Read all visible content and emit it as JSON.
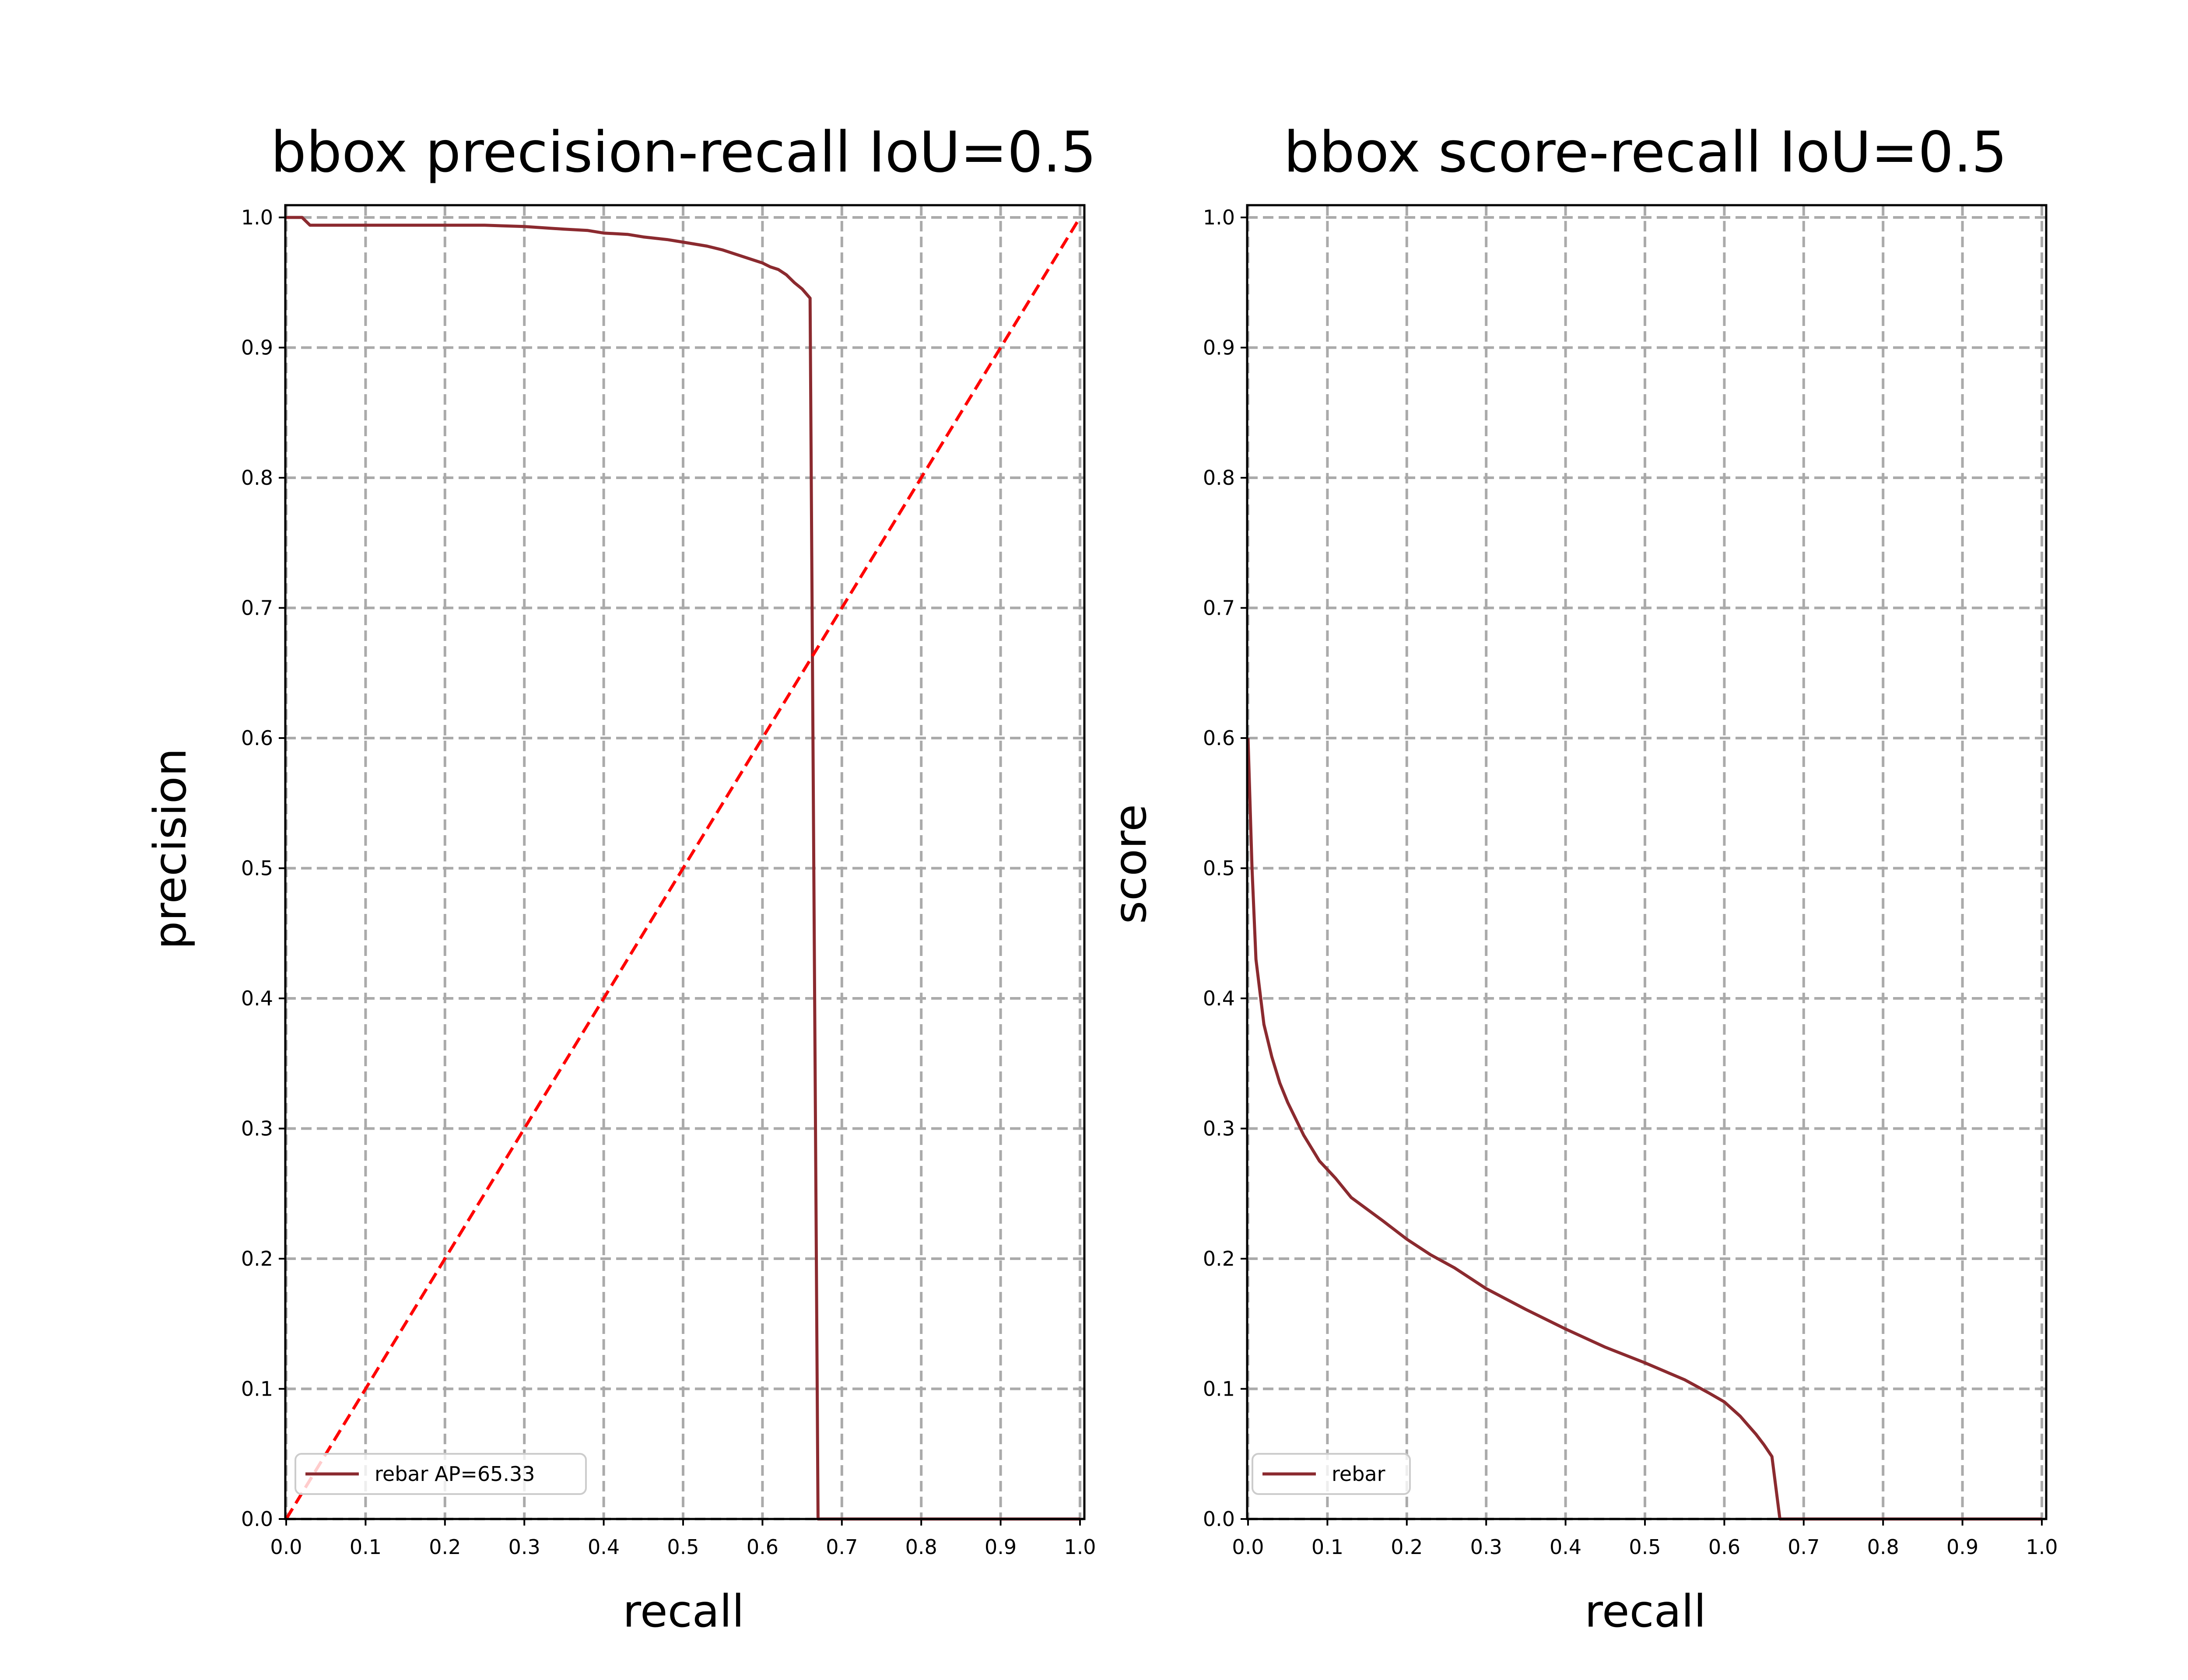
{
  "colors": {
    "curve": "#8b2a2f",
    "diagonal": "#ff0000",
    "grid": "#aaaaaa",
    "background": "#ffffff"
  },
  "chart_data": [
    {
      "type": "line",
      "title": "bbox precision-recall IoU=0.5",
      "xlabel": "recall",
      "ylabel": "precision",
      "xlim": [
        0.0,
        1.0
      ],
      "ylim": [
        0.0,
        1.0
      ],
      "xticks": [
        "0.0",
        "0.1",
        "0.2",
        "0.3",
        "0.4",
        "0.5",
        "0.6",
        "0.7",
        "0.8",
        "0.9",
        "1.0"
      ],
      "yticks": [
        "0.0",
        "0.1",
        "0.2",
        "0.3",
        "0.4",
        "0.5",
        "0.6",
        "0.7",
        "0.8",
        "0.9",
        "1.0"
      ],
      "grid": true,
      "legend": "lower-left",
      "series": [
        {
          "name": "rebar AP=65.33",
          "style": "solid",
          "x": [
            0.0,
            0.02,
            0.03,
            0.1,
            0.2,
            0.25,
            0.3,
            0.35,
            0.38,
            0.4,
            0.43,
            0.45,
            0.48,
            0.5,
            0.53,
            0.55,
            0.57,
            0.59,
            0.6,
            0.61,
            0.62,
            0.63,
            0.64,
            0.65,
            0.66,
            0.67,
            0.67,
            0.7,
            0.8,
            0.9,
            1.0
          ],
          "y": [
            1.0,
            1.0,
            0.994,
            0.994,
            0.994,
            0.994,
            0.993,
            0.991,
            0.99,
            0.988,
            0.987,
            0.985,
            0.983,
            0.981,
            0.978,
            0.975,
            0.971,
            0.967,
            0.965,
            0.962,
            0.96,
            0.956,
            0.95,
            0.945,
            0.938,
            0.0,
            0.0,
            0.0,
            0.0,
            0.0,
            0.0
          ]
        },
        {
          "name": "",
          "style": "dashed",
          "x": [
            0.0,
            1.0
          ],
          "y": [
            0.0,
            1.0
          ]
        }
      ]
    },
    {
      "type": "line",
      "title": "bbox score-recall IoU=0.5",
      "xlabel": "recall",
      "ylabel": "score",
      "xlim": [
        0.0,
        1.0
      ],
      "ylim": [
        0.0,
        1.0
      ],
      "xticks": [
        "0.0",
        "0.1",
        "0.2",
        "0.3",
        "0.4",
        "0.5",
        "0.6",
        "0.7",
        "0.8",
        "0.9",
        "1.0"
      ],
      "yticks": [
        "0.0",
        "0.1",
        "0.2",
        "0.3",
        "0.4",
        "0.5",
        "0.6",
        "0.7",
        "0.8",
        "0.9",
        "1.0"
      ],
      "grid": true,
      "legend": "lower-left",
      "series": [
        {
          "name": "rebar",
          "style": "solid",
          "x": [
            0.0,
            0.005,
            0.01,
            0.02,
            0.03,
            0.04,
            0.05,
            0.07,
            0.09,
            0.11,
            0.13,
            0.15,
            0.17,
            0.2,
            0.23,
            0.26,
            0.3,
            0.35,
            0.4,
            0.45,
            0.5,
            0.55,
            0.58,
            0.6,
            0.62,
            0.63,
            0.64,
            0.65,
            0.66,
            0.67,
            0.7,
            0.8,
            0.9,
            1.0
          ],
          "y": [
            0.6,
            0.5,
            0.43,
            0.38,
            0.355,
            0.335,
            0.32,
            0.295,
            0.275,
            0.262,
            0.247,
            0.238,
            0.229,
            0.215,
            0.203,
            0.193,
            0.177,
            0.161,
            0.146,
            0.132,
            0.12,
            0.107,
            0.097,
            0.09,
            0.079,
            0.072,
            0.065,
            0.057,
            0.048,
            0.0,
            0.0,
            0.0,
            0.0,
            0.0
          ]
        }
      ]
    }
  ]
}
